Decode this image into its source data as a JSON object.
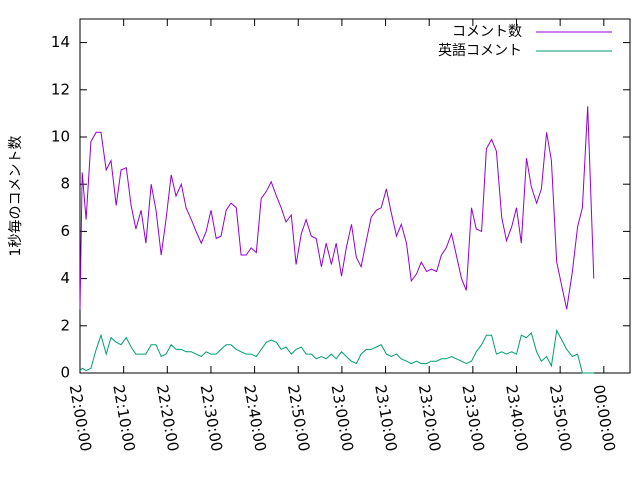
{
  "chart_data": {
    "type": "line",
    "y_label": "1秒毎のコメント数",
    "x": [
      0,
      0.5,
      1.4,
      2.5,
      3.7,
      4.8,
      6.0,
      7.1,
      8.3,
      9.4,
      10.6,
      11.7,
      12.8,
      14.0,
      15.1,
      16.3,
      17.4,
      18.6,
      19.7,
      20.9,
      22.0,
      23.2,
      24.3,
      25.5,
      26.6,
      27.8,
      28.9,
      30.0,
      31.2,
      32.3,
      33.5,
      34.6,
      35.8,
      36.9,
      38.1,
      39.2,
      40.4,
      41.5,
      42.7,
      43.8,
      45.0,
      46.1,
      47.2,
      48.4,
      49.5,
      50.7,
      51.8,
      53.0,
      54.1,
      55.3,
      56.4,
      57.6,
      58.7,
      59.9,
      61.0,
      62.2,
      63.3,
      64.4,
      65.6,
      66.7,
      67.9,
      69.0,
      70.2,
      71.3,
      72.5,
      73.6,
      74.8,
      75.9,
      77.1,
      78.2,
      79.4,
      80.5,
      81.7,
      82.8,
      83.9,
      85.1,
      86.2,
      87.4,
      88.5,
      89.7,
      90.8,
      92.0,
      93.1,
      94.3,
      95.4,
      96.6,
      97.7,
      98.9,
      100.0,
      101.1,
      102.3,
      103.4,
      104.6,
      105.7,
      106.9,
      108.0,
      109.2,
      111.5,
      112.8,
      114.0,
      115.1,
      116.3,
      117.7
    ],
    "series": [
      {
        "name": "コメント数",
        "color": "#9400d3",
        "values": [
          2.7,
          8.5,
          6.5,
          9.8,
          10.2,
          10.2,
          8.6,
          9.0,
          7.1,
          8.6,
          8.7,
          7.1,
          6.1,
          6.9,
          5.5,
          8.0,
          6.9,
          5.0,
          6.5,
          8.4,
          7.5,
          8.0,
          7.0,
          6.5,
          6.0,
          5.5,
          6.0,
          6.9,
          5.7,
          5.8,
          6.9,
          7.2,
          7.0,
          5.0,
          5.0,
          5.3,
          5.1,
          7.4,
          7.7,
          8.1,
          7.5,
          7.0,
          6.4,
          6.7,
          4.6,
          5.9,
          6.5,
          5.8,
          5.7,
          4.5,
          5.5,
          4.6,
          5.5,
          4.1,
          5.3,
          6.3,
          4.9,
          4.5,
          5.6,
          6.6,
          6.9,
          7.0,
          7.8,
          6.8,
          5.8,
          6.3,
          5.5,
          3.9,
          4.2,
          4.7,
          4.3,
          4.4,
          4.3,
          5.0,
          5.3,
          5.9,
          5.0,
          4.0,
          3.5,
          7.0,
          6.1,
          6.0,
          9.5,
          9.9,
          9.4,
          6.6,
          5.6,
          6.2,
          7.0,
          5.5,
          9.1,
          7.9,
          7.2,
          7.8,
          10.2,
          9.0,
          4.7,
          2.7,
          4.3,
          6.2,
          7.0,
          11.3,
          4.0
        ]
      },
      {
        "name": "英語コメント",
        "color": "#009e73",
        "values": [
          0.1,
          0.2,
          0.1,
          0.2,
          1.0,
          1.6,
          0.8,
          1.5,
          1.3,
          1.2,
          1.5,
          1.1,
          0.8,
          0.8,
          0.8,
          1.2,
          1.2,
          0.7,
          0.8,
          1.2,
          1.0,
          1.0,
          0.9,
          0.9,
          0.8,
          0.7,
          0.9,
          0.8,
          0.8,
          1.0,
          1.2,
          1.2,
          1.0,
          0.9,
          0.8,
          0.8,
          0.7,
          1.0,
          1.3,
          1.4,
          1.3,
          1.0,
          1.1,
          0.8,
          1.0,
          1.1,
          0.8,
          0.8,
          0.6,
          0.7,
          0.6,
          0.8,
          0.6,
          0.9,
          0.7,
          0.5,
          0.4,
          0.8,
          1.0,
          1.0,
          1.1,
          1.2,
          0.8,
          0.7,
          0.8,
          0.6,
          0.5,
          0.4,
          0.5,
          0.4,
          0.4,
          0.5,
          0.5,
          0.6,
          0.6,
          0.7,
          0.6,
          0.5,
          0.4,
          0.5,
          0.9,
          1.2,
          1.6,
          1.6,
          0.8,
          0.9,
          0.8,
          0.9,
          0.8,
          1.6,
          1.5,
          1.7,
          0.9,
          0.5,
          0.7,
          0.3,
          1.8,
          1.0,
          0.7,
          0.8,
          0,
          0,
          0
        ]
      }
    ],
    "xlim": [
      0,
      126
    ],
    "xticks": [
      {
        "value": 0,
        "label": "22:00:00"
      },
      {
        "value": 10,
        "label": "22:10:00"
      },
      {
        "value": 20,
        "label": "22:20:00"
      },
      {
        "value": 30,
        "label": "22:30:00"
      },
      {
        "value": 40,
        "label": "22:40:00"
      },
      {
        "value": 50,
        "label": "22:50:00"
      },
      {
        "value": 60,
        "label": "23:00:00"
      },
      {
        "value": 70,
        "label": "23:10:00"
      },
      {
        "value": 80,
        "label": "23:20:00"
      },
      {
        "value": 90,
        "label": "23:30:00"
      },
      {
        "value": 100,
        "label": "23:40:00"
      },
      {
        "value": 110,
        "label": "23:50:00"
      },
      {
        "value": 120,
        "label": "00:00:00"
      }
    ],
    "ylim": [
      0,
      15
    ],
    "yticks": [
      0,
      2,
      4,
      6,
      8,
      10,
      12,
      14
    ],
    "legend": "top-right",
    "grid": false
  }
}
